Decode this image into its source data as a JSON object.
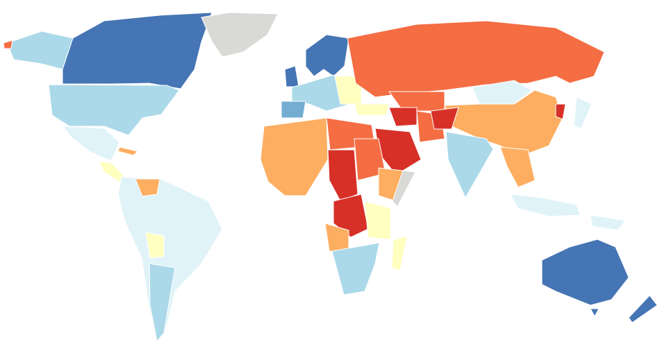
{
  "map": {
    "type": "choropleth world map",
    "palette": {
      "no_data": "#d9d9d6",
      "level_1": "#4575b4",
      "level_2": "#74add1",
      "level_3": "#abd9e9",
      "level_4": "#e0f3f8",
      "level_5": "#ffffbf",
      "level_6": "#fdae61",
      "level_7": "#f46d43",
      "level_8": "#d73027"
    },
    "regions": {
      "alaska": "level_3",
      "alaska-tip": "level_7",
      "canada": "level_1",
      "greenland": "no_data",
      "usa": "level_3",
      "mexico": "level_4",
      "central-america": "level_5",
      "caribbean": "level_6",
      "south-america": "level_4",
      "venezuela": "level_6",
      "bolivia": "level_5",
      "argentina": "level_3",
      "scandinavia": "level_1",
      "uk": "level_1",
      "western-europe": "level_3",
      "spain": "level_2",
      "eastern-europe": "level_5",
      "russia": "level_7",
      "central-asia": "level_7",
      "mongolia": "level_4",
      "china": "level_6",
      "korea": "level_8",
      "japan": "level_4",
      "turkey": "level_5",
      "syria-iraq": "level_8",
      "iran": "level_7",
      "saudi-arabia": "level_8",
      "afghanistan": "level_8",
      "india": "level_3",
      "southeast-asia": "level_6",
      "indonesia": "level_4",
      "papua": "level_4",
      "west-africa": "level_6",
      "north-africa": "level_7",
      "chad-car": "level_8",
      "sudan": "level_7",
      "horn-of-africa": "level_6",
      "somalia": "no_data",
      "drc": "level_8",
      "east-africa": "level_5",
      "angola": "level_6",
      "southern-africa": "level_3",
      "madagascar": "level_5",
      "australia": "level_1",
      "tasmania": "level_1",
      "new-zealand": "level_1"
    }
  }
}
